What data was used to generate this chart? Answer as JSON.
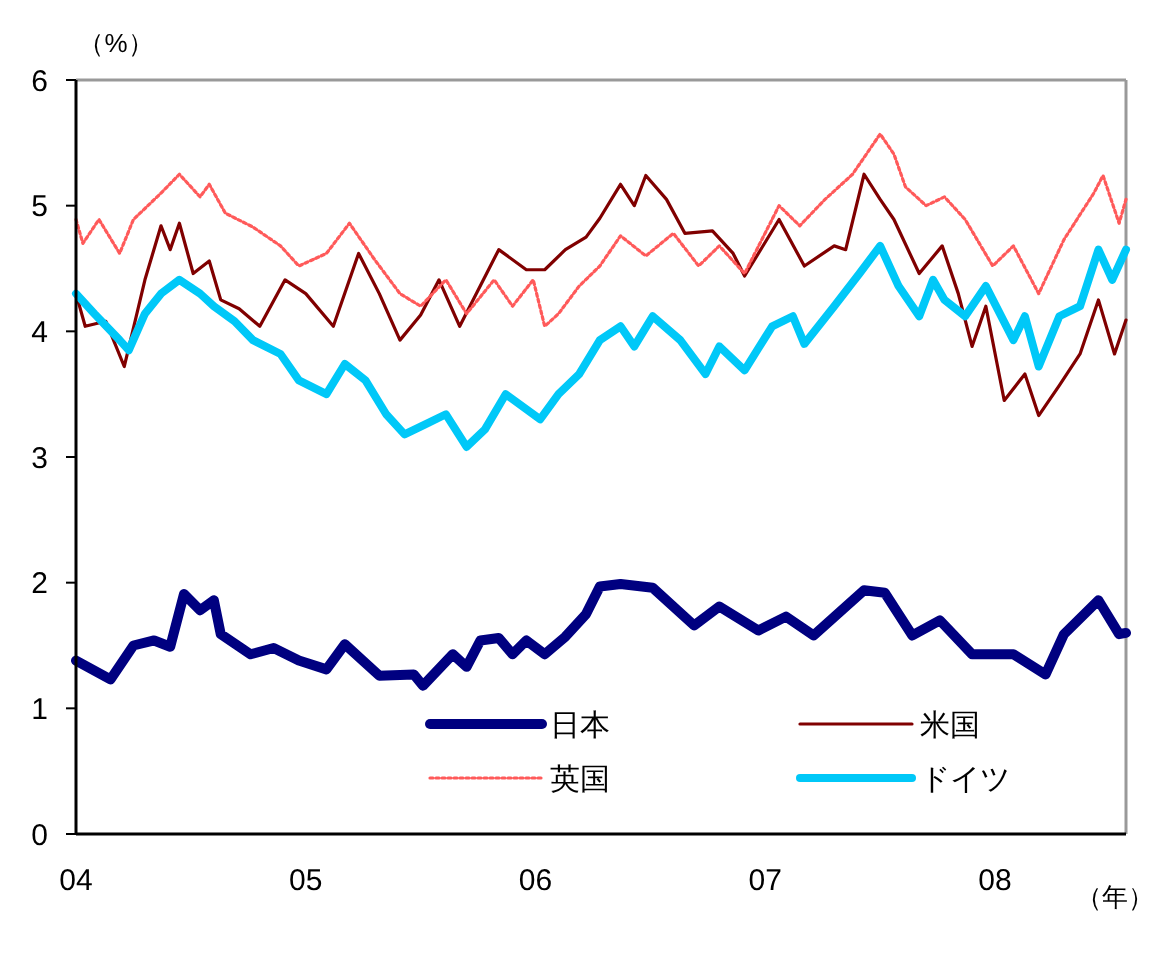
{
  "chart_data": {
    "type": "line",
    "ylabel": "（%）",
    "xlabel": "（年）",
    "xlim": [
      2004,
      2008.57
    ],
    "xticks": [
      {
        "value": 2004,
        "label": "04"
      },
      {
        "value": 2005,
        "label": "05"
      },
      {
        "value": 2006,
        "label": "06"
      },
      {
        "value": 2007,
        "label": "07"
      },
      {
        "value": 2008,
        "label": "08"
      }
    ],
    "ylim": [
      0,
      6
    ],
    "yticks": [
      0,
      1,
      2,
      3,
      4,
      5,
      6
    ],
    "grid": false,
    "legend": "bottom",
    "marker": "none",
    "series": [
      {
        "name": "日本",
        "color": "#000080",
        "line_style": "solid",
        "x": [
          2004,
          2004.15,
          2004.25,
          2004.34,
          2004.41,
          2004.47,
          2004.54,
          2004.6,
          2004.63,
          2004.76,
          2004.86,
          2004.97,
          2005.09,
          2005.17,
          2005.32,
          2005.47,
          2005.51,
          2005.64,
          2005.7,
          2005.76,
          2005.84,
          2005.9,
          2005.96,
          2006.04,
          2006.13,
          2006.22,
          2006.28,
          2006.37,
          2006.51,
          2006.69,
          2006.8,
          2006.97,
          2007.09,
          2007.21,
          2007.43,
          2007.52,
          2007.64,
          2007.76,
          2007.9,
          2008.08,
          2008.22,
          2008.3,
          2008.45,
          2008.54,
          2008.57
        ],
        "values": [
          1.38,
          1.23,
          1.5,
          1.54,
          1.49,
          1.91,
          1.78,
          1.86,
          1.59,
          1.43,
          1.48,
          1.38,
          1.31,
          1.51,
          1.26,
          1.27,
          1.18,
          1.43,
          1.33,
          1.54,
          1.56,
          1.43,
          1.54,
          1.43,
          1.57,
          1.75,
          1.97,
          1.99,
          1.96,
          1.66,
          1.81,
          1.62,
          1.73,
          1.58,
          1.94,
          1.92,
          1.58,
          1.7,
          1.43,
          1.43,
          1.27,
          1.59,
          1.86,
          1.59,
          1.6
        ]
      },
      {
        "name": "米国",
        "color": "#800000",
        "line_style": "solid",
        "x": [
          2004,
          2004.04,
          2004.13,
          2004.21,
          2004.3,
          2004.37,
          2004.41,
          2004.45,
          2004.51,
          2004.58,
          2004.63,
          2004.71,
          2004.8,
          2004.91,
          2005,
          2005.12,
          2005.23,
          2005.32,
          2005.41,
          2005.5,
          2005.58,
          2005.67,
          2005.84,
          2005.96,
          2006.04,
          2006.13,
          2006.22,
          2006.28,
          2006.37,
          2006.43,
          2006.48,
          2006.57,
          2006.65,
          2006.77,
          2006.86,
          2006.91,
          2007.06,
          2007.17,
          2007.3,
          2007.35,
          2007.43,
          2007.5,
          2007.56,
          2007.67,
          2007.77,
          2007.84,
          2007.9,
          2007.96,
          2008.04,
          2008.13,
          2008.19,
          2008.28,
          2008.37,
          2008.45,
          2008.52,
          2008.57
        ],
        "values": [
          4.3,
          4.04,
          4.08,
          3.72,
          4.41,
          4.84,
          4.65,
          4.86,
          4.46,
          4.56,
          4.25,
          4.18,
          4.04,
          4.41,
          4.3,
          4.04,
          4.62,
          4.3,
          3.93,
          4.13,
          4.41,
          4.04,
          4.65,
          4.49,
          4.49,
          4.65,
          4.75,
          4.9,
          5.17,
          5.0,
          5.24,
          5.05,
          4.78,
          4.8,
          4.62,
          4.44,
          4.89,
          4.52,
          4.68,
          4.65,
          5.25,
          5.05,
          4.89,
          4.46,
          4.68,
          4.3,
          3.88,
          4.2,
          3.45,
          3.66,
          3.33,
          3.57,
          3.82,
          4.25,
          3.82,
          4.09
        ]
      },
      {
        "name": "英国",
        "color": "#ff5a5a",
        "line_style": "dotted",
        "x": [
          2004,
          2004.03,
          2004.1,
          2004.19,
          2004.25,
          2004.37,
          2004.45,
          2004.54,
          2004.58,
          2004.65,
          2004.77,
          2004.89,
          2004.97,
          2005.09,
          2005.19,
          2005.3,
          2005.41,
          2005.5,
          2005.61,
          2005.7,
          2005.82,
          2005.9,
          2005.99,
          2006.04,
          2006.1,
          2006.19,
          2006.28,
          2006.37,
          2006.48,
          2006.6,
          2006.71,
          2006.8,
          2006.91,
          2007.06,
          2007.15,
          2007.26,
          2007.38,
          2007.5,
          2007.56,
          2007.61,
          2007.7,
          2007.78,
          2007.87,
          2007.99,
          2008.08,
          2008.19,
          2008.3,
          2008.43,
          2008.47,
          2008.54,
          2008.57
        ],
        "values": [
          4.89,
          4.7,
          4.89,
          4.62,
          4.89,
          5.1,
          5.25,
          5.07,
          5.17,
          4.94,
          4.83,
          4.68,
          4.52,
          4.62,
          4.86,
          4.57,
          4.3,
          4.2,
          4.41,
          4.14,
          4.41,
          4.2,
          4.41,
          4.04,
          4.14,
          4.36,
          4.52,
          4.76,
          4.6,
          4.78,
          4.52,
          4.68,
          4.46,
          5.0,
          4.84,
          5.05,
          5.25,
          5.57,
          5.41,
          5.15,
          5.0,
          5.07,
          4.89,
          4.52,
          4.68,
          4.3,
          4.73,
          5.1,
          5.24,
          4.86,
          5.05
        ]
      },
      {
        "name": "ドイツ",
        "color": "#00c8f8",
        "line_style": "solid",
        "x": [
          2004,
          2004.08,
          2004.19,
          2004.23,
          2004.3,
          2004.37,
          2004.45,
          2004.54,
          2004.6,
          2004.69,
          2004.77,
          2004.89,
          2004.97,
          2005.09,
          2005.17,
          2005.26,
          2005.35,
          2005.43,
          2005.52,
          2005.61,
          2005.7,
          2005.78,
          2005.87,
          2006.02,
          2006.1,
          2006.19,
          2006.28,
          2006.37,
          2006.43,
          2006.51,
          2006.63,
          2006.74,
          2006.8,
          2006.91,
          2007.03,
          2007.12,
          2007.17,
          2007.3,
          2007.41,
          2007.5,
          2007.58,
          2007.67,
          2007.73,
          2007.78,
          2007.87,
          2007.96,
          2008.08,
          2008.13,
          2008.19,
          2008.28,
          2008.37,
          2008.45,
          2008.51,
          2008.57
        ],
        "values": [
          4.3,
          4.14,
          3.93,
          3.85,
          4.14,
          4.3,
          4.41,
          4.3,
          4.2,
          4.08,
          3.93,
          3.82,
          3.61,
          3.5,
          3.74,
          3.61,
          3.34,
          3.18,
          3.26,
          3.34,
          3.08,
          3.22,
          3.5,
          3.3,
          3.5,
          3.66,
          3.93,
          4.04,
          3.88,
          4.12,
          3.93,
          3.66,
          3.88,
          3.69,
          4.04,
          4.12,
          3.9,
          4.2,
          4.46,
          4.68,
          4.36,
          4.12,
          4.41,
          4.25,
          4.12,
          4.36,
          3.93,
          4.12,
          3.72,
          4.12,
          4.2,
          4.65,
          4.41,
          4.65
        ]
      }
    ]
  }
}
